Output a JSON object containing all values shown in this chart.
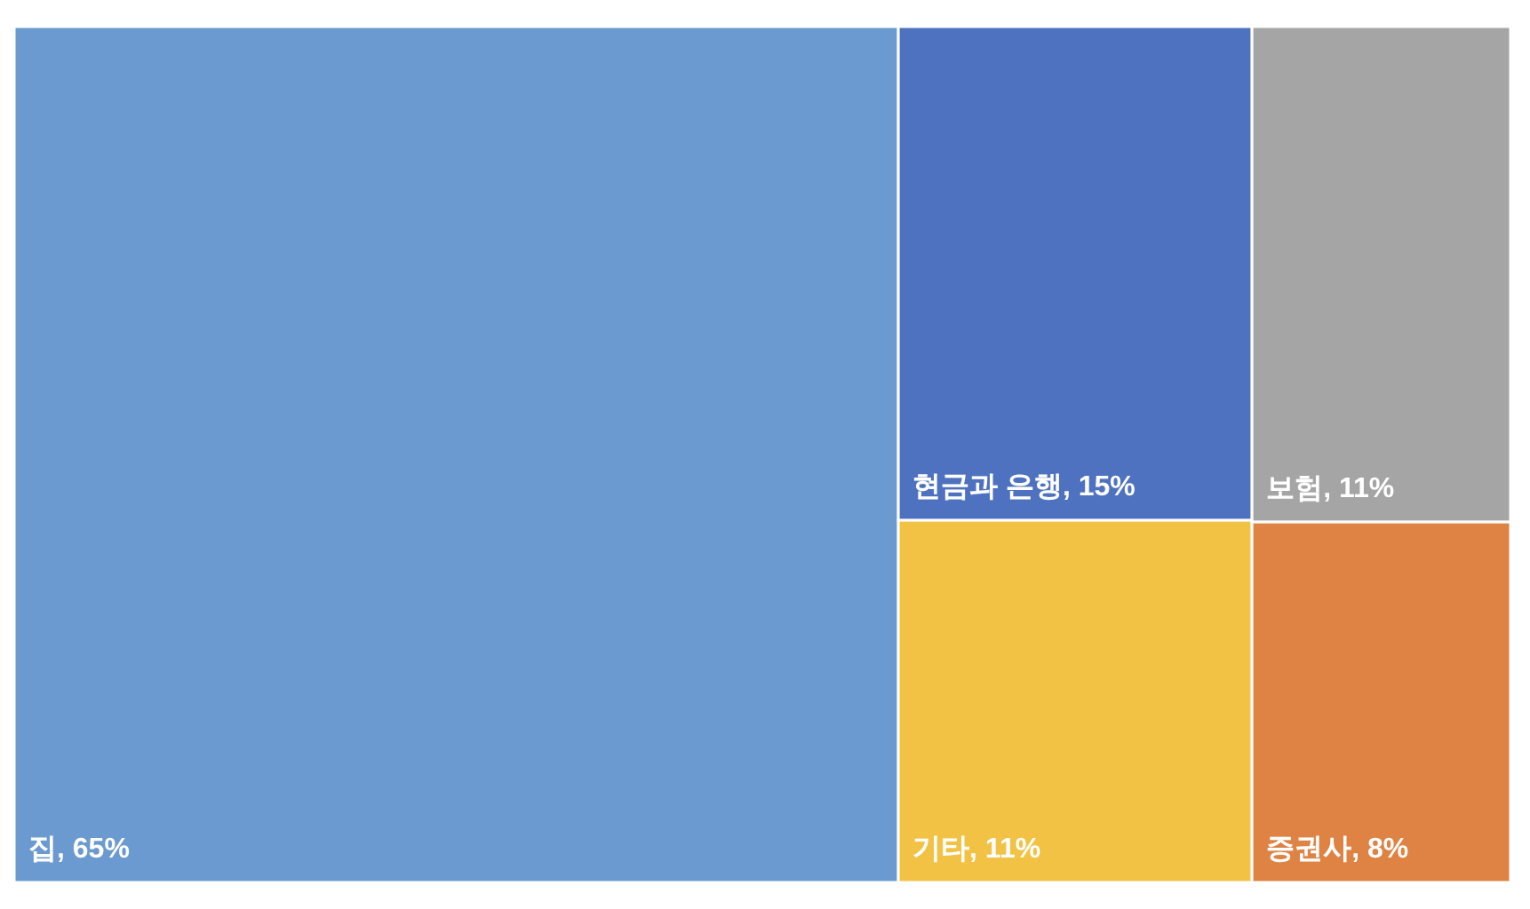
{
  "chart_data": {
    "type": "other",
    "categories": [
      "집",
      "현금과 은행",
      "기타",
      "보험",
      "증권사"
    ],
    "values": [
      65,
      15,
      11,
      11,
      8
    ],
    "value_labels": [
      ", 65%",
      ", 15%",
      ", 11%",
      ", 11%",
      ", 8%"
    ],
    "colors": [
      "#6a9ad0",
      "#4e72bf",
      "#f2c244",
      "#a5a5a5",
      "#df8344"
    ]
  }
}
